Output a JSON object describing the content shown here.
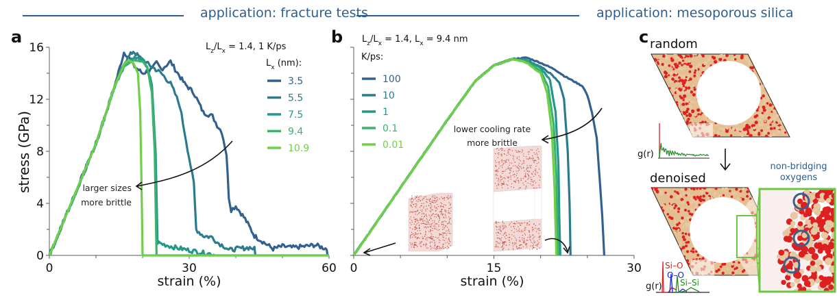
{
  "headers": {
    "fracture": "application: fracture tests",
    "silica": "application: mesoporous silica"
  },
  "panels": {
    "a": "a",
    "b": "b",
    "c": "c"
  },
  "colors": {
    "header_blue": "#2c5d8f",
    "series": [
      "#33608f",
      "#2b7a8e",
      "#24968a",
      "#3bb26d",
      "#6fcf48"
    ],
    "si_o": "#e01b1b",
    "o_o": "#1a25d6",
    "si_si": "#1f8a1f",
    "atom_o": "#e02020",
    "atom_si": "#e6c39a",
    "zoom_box": "#6cc644",
    "circle": "#3a5f8f"
  },
  "chart_data": [
    {
      "id": "a",
      "type": "line",
      "title": "",
      "condition": "Lz/Lx = 1.4,  1 K/ps",
      "xlabel": "strain (%)",
      "ylabel": "stress (GPa)",
      "xlim": [
        0,
        60
      ],
      "ylim": [
        0,
        16
      ],
      "xticks": [
        0,
        30,
        60
      ],
      "xminor": [
        10,
        20,
        40,
        50
      ],
      "yticks": [
        0,
        4,
        8,
        12,
        16
      ],
      "yminor": [
        2,
        6,
        10,
        14
      ],
      "grid": false,
      "legend_title": "Lx (nm):",
      "legend_position": "top-right",
      "annotation": [
        "larger sizes",
        "more brittle"
      ],
      "series": [
        {
          "name": "3.5",
          "points": [
            [
              0,
              0
            ],
            [
              5,
              4.3
            ],
            [
              10,
              8.6
            ],
            [
              14,
              13
            ],
            [
              16,
              15.6
            ],
            [
              17,
              15.3
            ],
            [
              18,
              14.6
            ],
            [
              20,
              14.0
            ],
            [
              22,
              14.3
            ],
            [
              23,
              14.8
            ],
            [
              24,
              14.3
            ],
            [
              26,
              14.9
            ],
            [
              27,
              14.3
            ],
            [
              29,
              13.2
            ],
            [
              31,
              12.5
            ],
            [
              33,
              11.0
            ],
            [
              35,
              10.7
            ],
            [
              36,
              10.0
            ],
            [
              37,
              9.5
            ],
            [
              38,
              7.8
            ],
            [
              38.5,
              4.5
            ],
            [
              39,
              3.5
            ],
            [
              40,
              3.8
            ],
            [
              42,
              2.8
            ],
            [
              44,
              1.5
            ],
            [
              46,
              1.0
            ],
            [
              48,
              0.5
            ],
            [
              50,
              0.7
            ],
            [
              52,
              0.6
            ],
            [
              55,
              0.7
            ],
            [
              57,
              0.8
            ],
            [
              59.5,
              0.5
            ],
            [
              59.8,
              0
            ]
          ]
        },
        {
          "name": "5.5",
          "points": [
            [
              0,
              0
            ],
            [
              5,
              4.3
            ],
            [
              10,
              8.6
            ],
            [
              14,
              13
            ],
            [
              16,
              14.8
            ],
            [
              18,
              15.7
            ],
            [
              20,
              15.0
            ],
            [
              22,
              14.5
            ],
            [
              24,
              14.0
            ],
            [
              26,
              13.2
            ],
            [
              27,
              12.4
            ],
            [
              28,
              11.5
            ],
            [
              29,
              9.5
            ],
            [
              30,
              7.5
            ],
            [
              31,
              5.5
            ],
            [
              31.5,
              2.0
            ],
            [
              33,
              1.5
            ],
            [
              35,
              1.4
            ],
            [
              36,
              1.0
            ],
            [
              37,
              0.8
            ],
            [
              38,
              0.6
            ],
            [
              38.5,
              0.4
            ],
            [
              40,
              0.5
            ],
            [
              43,
              0.6
            ],
            [
              44,
              0.5
            ],
            [
              44.2,
              0
            ]
          ]
        },
        {
          "name": "7.5",
          "points": [
            [
              0,
              0
            ],
            [
              5,
              4.3
            ],
            [
              10,
              8.6
            ],
            [
              14,
              13
            ],
            [
              16,
              14.6
            ],
            [
              18,
              15.2
            ],
            [
              20,
              15.0
            ],
            [
              21,
              14.5
            ],
            [
              22,
              13.0
            ],
            [
              22.8,
              8
            ],
            [
              23.2,
              1
            ],
            [
              24,
              0.9
            ],
            [
              27,
              0.6
            ],
            [
              30,
              0.4
            ],
            [
              33,
              0.2
            ],
            [
              35,
              0.1
            ],
            [
              35.5,
              0
            ]
          ]
        },
        {
          "name": "9.4",
          "points": [
            [
              0,
              0
            ],
            [
              5,
              4.3
            ],
            [
              10,
              8.6
            ],
            [
              14,
              13
            ],
            [
              16,
              14.5
            ],
            [
              18,
              15.0
            ],
            [
              20,
              14.9
            ],
            [
              21,
              14.5
            ],
            [
              22,
              12.5
            ],
            [
              22.6,
              8
            ],
            [
              23,
              0
            ],
            [
              60,
              0
            ]
          ]
        },
        {
          "name": "10.9",
          "points": [
            [
              0,
              0
            ],
            [
              5,
              4.3
            ],
            [
              10,
              8.6
            ],
            [
              14,
              13
            ],
            [
              16,
              14.7
            ],
            [
              17,
              15.0
            ],
            [
              18,
              14.8
            ],
            [
              19,
              14.0
            ],
            [
              19.5,
              11
            ],
            [
              19.8,
              5
            ],
            [
              20,
              0
            ],
            [
              60,
              0
            ]
          ]
        }
      ]
    },
    {
      "id": "b",
      "type": "line",
      "title": "",
      "condition": "Lz/Lx = 1.4,  Lx = 9.4 nm",
      "xlabel": "strain (%)",
      "ylabel": "",
      "xlim": [
        0,
        30
      ],
      "ylim": [
        0,
        16
      ],
      "xticks": [
        0,
        15,
        30
      ],
      "xminor": [
        5,
        10,
        20,
        25
      ],
      "yticks": [
        0,
        4,
        8,
        12,
        16
      ],
      "yminor": [
        2,
        6,
        10,
        14
      ],
      "grid": false,
      "legend_title": "K/ps:",
      "legend_position": "top-left",
      "annotation": [
        "lower cooling rate",
        "more brittle"
      ],
      "series": [
        {
          "name": "100",
          "points": [
            [
              0,
              0
            ],
            [
              5,
              5.2
            ],
            [
              10,
              10.4
            ],
            [
              13,
              13.4
            ],
            [
              15,
              14.6
            ],
            [
              17,
              15.1
            ],
            [
              18.5,
              15.2
            ],
            [
              20,
              14.8
            ],
            [
              21.5,
              14.3
            ],
            [
              22.5,
              13.8
            ],
            [
              23.5,
              13.4
            ],
            [
              24.5,
              13.0
            ],
            [
              25,
              12.3
            ],
            [
              25.5,
              11
            ],
            [
              26,
              9
            ],
            [
              26.3,
              6
            ],
            [
              26.6,
              3
            ],
            [
              26.8,
              0
            ]
          ]
        },
        {
          "name": "10",
          "points": [
            [
              0,
              0
            ],
            [
              5,
              5.2
            ],
            [
              10,
              10.4
            ],
            [
              13,
              13.4
            ],
            [
              15,
              14.6
            ],
            [
              17,
              15.1
            ],
            [
              18.5,
              15.0
            ],
            [
              20,
              14.5
            ],
            [
              21,
              14.0
            ],
            [
              22,
              13.3
            ],
            [
              22.5,
              12
            ],
            [
              22.9,
              8
            ],
            [
              23.1,
              4
            ],
            [
              23.2,
              0
            ]
          ]
        },
        {
          "name": "1",
          "points": [
            [
              0,
              0
            ],
            [
              5,
              5.2
            ],
            [
              10,
              10.4
            ],
            [
              13,
              13.4
            ],
            [
              15,
              14.6
            ],
            [
              17,
              15.1
            ],
            [
              18.5,
              15.0
            ],
            [
              20,
              14.4
            ],
            [
              21,
              13.5
            ],
            [
              21.6,
              11
            ],
            [
              21.9,
              7
            ],
            [
              22.0,
              3
            ],
            [
              22.1,
              0
            ]
          ]
        },
        {
          "name": "0.1",
          "points": [
            [
              0,
              0
            ],
            [
              5,
              5.2
            ],
            [
              10,
              10.4
            ],
            [
              13,
              13.4
            ],
            [
              15,
              14.6
            ],
            [
              17,
              15.1
            ],
            [
              18.5,
              14.9
            ],
            [
              20,
              14.2
            ],
            [
              20.8,
              13
            ],
            [
              21.4,
              10
            ],
            [
              21.7,
              6
            ],
            [
              21.8,
              2
            ],
            [
              21.9,
              0
            ]
          ]
        },
        {
          "name": "0.01",
          "points": [
            [
              0,
              0
            ],
            [
              5,
              5.2
            ],
            [
              10,
              10.4
            ],
            [
              13,
              13.4
            ],
            [
              15,
              14.6
            ],
            [
              17,
              15.1
            ],
            [
              18.5,
              14.8
            ],
            [
              20,
              14.0
            ],
            [
              20.7,
              12.5
            ],
            [
              21.2,
              9.5
            ],
            [
              21.5,
              5
            ],
            [
              21.6,
              2
            ],
            [
              21.7,
              0
            ]
          ]
        }
      ]
    }
  ],
  "panel_c": {
    "random_label": "random",
    "denoised_label": "denoised",
    "gr_label": "g(r)",
    "gr_peaks": [
      "Si–O",
      "O–O",
      "Si–Si"
    ],
    "nbo_line1": "non-bridging",
    "nbo_line2": "oxygens"
  }
}
